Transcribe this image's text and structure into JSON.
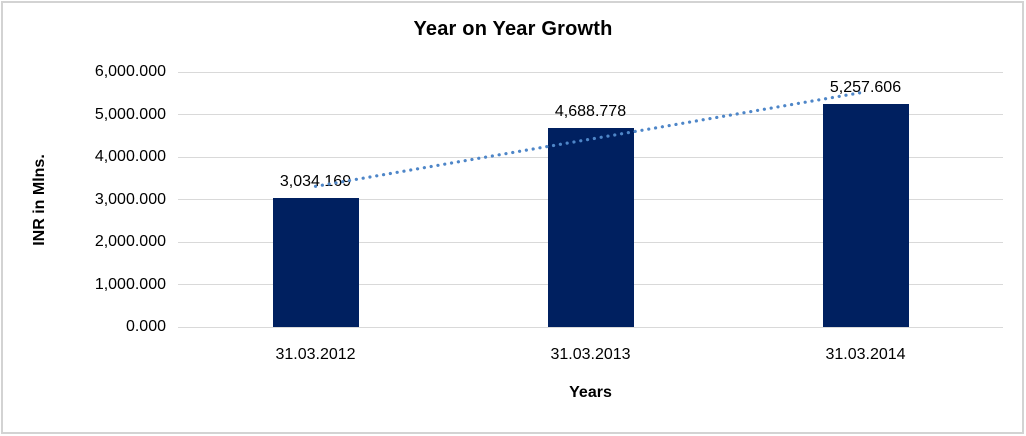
{
  "chart_data": {
    "type": "bar",
    "title": "Year on Year Growth",
    "xlabel": "Years",
    "ylabel": "INR in Mlns.",
    "categories": [
      "31.03.2012",
      "31.03.2013",
      "31.03.2014"
    ],
    "values": [
      3034.169,
      4688.778,
      5257.606
    ],
    "value_labels": [
      "3,034.169",
      "4,688.778",
      "5,257.606"
    ],
    "ylim": [
      0,
      6000
    ],
    "ytick_step": 1000,
    "ytick_labels": [
      "0.000",
      "1,000.000",
      "2,000.000",
      "3,000.000",
      "4,000.000",
      "5,000.000",
      "6,000.000"
    ],
    "grid": true,
    "legend": "none",
    "trendline": "linear-dotted",
    "colors": {
      "bar": "#002060",
      "trendline": "#4e86c8",
      "gridline": "#d9d9d9",
      "frame": "#d3d3d3",
      "text": "#000000"
    }
  }
}
